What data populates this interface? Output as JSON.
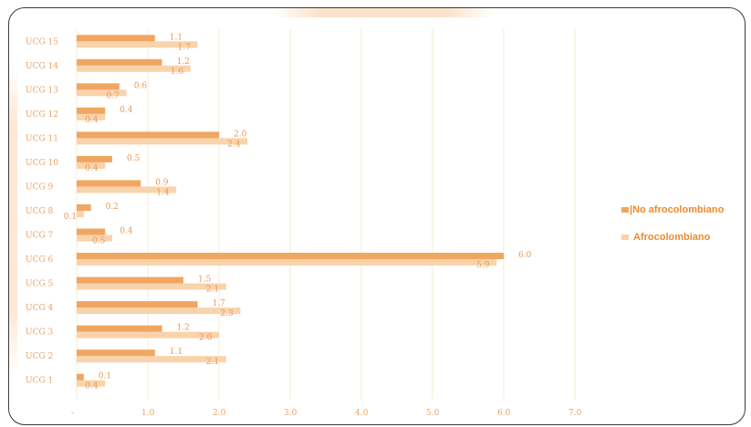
{
  "chart_data": {
    "type": "bar",
    "orientation": "horizontal",
    "categories": [
      "UCG 15",
      "UCG 14",
      "UCG 13",
      "UCG 12",
      "UCG 11",
      "UCG 10",
      "UCG 9",
      "UCG 8",
      "UCG 7",
      "UCG 6",
      "UCG 5",
      "UCG 4",
      "UCG 3",
      "UCG 2",
      "UCG 1"
    ],
    "series": [
      {
        "name": "No afrocolombiano",
        "color": "#f0a661",
        "values": [
          1.1,
          1.2,
          0.6,
          0.4,
          2.0,
          0.5,
          0.9,
          0.2,
          0.4,
          6.0,
          1.5,
          1.7,
          1.2,
          1.1,
          0.1
        ],
        "labels": [
          "1.1",
          "1.2",
          "0.6",
          "0.4",
          "2.0",
          "0.5",
          "0.9",
          "0.2",
          "0.4",
          "6.0",
          "1.5",
          "1.7",
          "1.2",
          "1.1",
          "0.1"
        ]
      },
      {
        "name": "Afrocolombiano",
        "color": "#f9d3ab",
        "values": [
          1.7,
          1.6,
          0.7,
          0.4,
          2.4,
          0.4,
          1.4,
          0.1,
          0.5,
          5.9,
          2.1,
          2.3,
          2.0,
          2.1,
          0.4
        ],
        "labels": [
          "1.7",
          "1.6",
          "0.7",
          "0.4",
          "2.4",
          "0.4",
          "1.4",
          "0.1",
          "0.5",
          "5.9",
          "2.1",
          "2.3",
          "2.0",
          "2.1",
          "0.4"
        ]
      }
    ],
    "x_ticks": [
      "-",
      "1.0",
      "2.0",
      "3.0",
      "4.0",
      "5.0",
      "6.0",
      "7.0"
    ],
    "xlim": [
      0,
      7
    ],
    "grid": true,
    "legend_position": "right"
  }
}
